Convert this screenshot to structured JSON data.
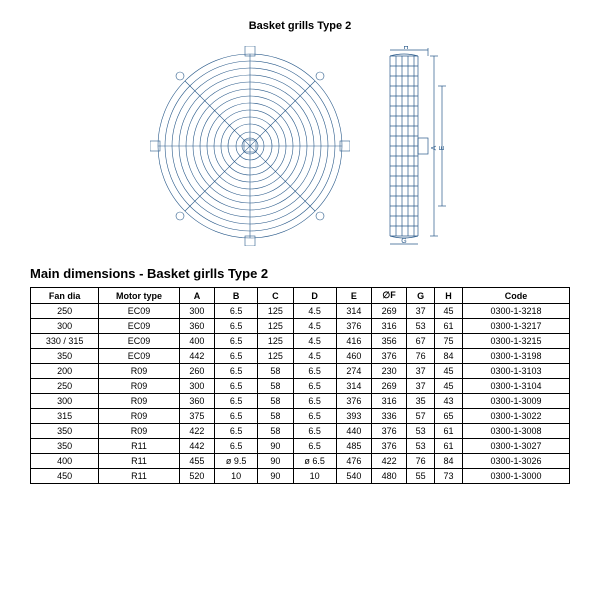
{
  "page_title": "Basket grills Type 2",
  "main_title": "Main dimensions - Basket girlls Type 2",
  "drawing": {
    "grill_line_color": "#2a5a8a",
    "grill_background": "#ffffff",
    "side_line_color": "#2a5a8a"
  },
  "table": {
    "columns": [
      "Fan dia",
      "Motor type",
      "A",
      "B",
      "C",
      "D",
      "E",
      "∅F",
      "G",
      "H",
      "Code"
    ],
    "rows": [
      [
        "250",
        "EC09",
        "300",
        "6.5",
        "125",
        "4.5",
        "314",
        "269",
        "37",
        "45",
        "0300-1-3218"
      ],
      [
        "300",
        "EC09",
        "360",
        "6.5",
        "125",
        "4.5",
        "376",
        "316",
        "53",
        "61",
        "0300-1-3217"
      ],
      [
        "330 / 315",
        "EC09",
        "400",
        "6.5",
        "125",
        "4.5",
        "416",
        "356",
        "67",
        "75",
        "0300-1-3215"
      ],
      [
        "350",
        "EC09",
        "442",
        "6.5",
        "125",
        "4.5",
        "460",
        "376",
        "76",
        "84",
        "0300-1-3198"
      ],
      [
        "200",
        "R09",
        "260",
        "6.5",
        "58",
        "6.5",
        "274",
        "230",
        "37",
        "45",
        "0300-1-3103"
      ],
      [
        "250",
        "R09",
        "300",
        "6.5",
        "58",
        "6.5",
        "314",
        "269",
        "37",
        "45",
        "0300-1-3104"
      ],
      [
        "300",
        "R09",
        "360",
        "6.5",
        "58",
        "6.5",
        "376",
        "316",
        "35",
        "43",
        "0300-1-3009"
      ],
      [
        "315",
        "R09",
        "375",
        "6.5",
        "58",
        "6.5",
        "393",
        "336",
        "57",
        "65",
        "0300-1-3022"
      ],
      [
        "350",
        "R09",
        "422",
        "6.5",
        "58",
        "6.5",
        "440",
        "376",
        "53",
        "61",
        "0300-1-3008"
      ],
      [
        "350",
        "R11",
        "442",
        "6.5",
        "90",
        "6.5",
        "485",
        "376",
        "53",
        "61",
        "0300-1-3027"
      ],
      [
        "400",
        "R11",
        "455",
        "ø 9.5",
        "90",
        "ø 6.5",
        "476",
        "422",
        "76",
        "84",
        "0300-1-3026"
      ],
      [
        "450",
        "R11",
        "520",
        "10",
        "90",
        "10",
        "540",
        "480",
        "55",
        "73",
        "0300-1-3000"
      ]
    ]
  }
}
